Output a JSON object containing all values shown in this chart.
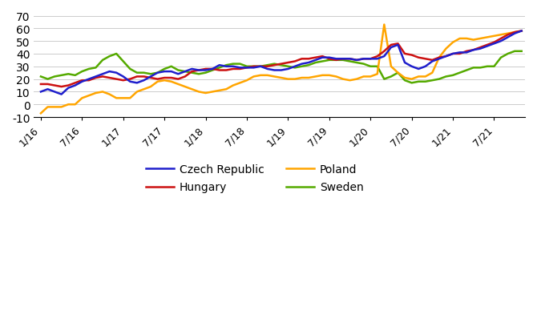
{
  "colors": {
    "czech_republic": "#1F1FCC",
    "hungary": "#CC1111",
    "poland": "#FFA500",
    "sweden": "#55AA00"
  },
  "line_width": 1.8,
  "ylim": [
    -10,
    70
  ],
  "yticks": [
    -10,
    0,
    10,
    20,
    30,
    40,
    50,
    60,
    70
  ],
  "czech_republic": [
    10,
    12,
    10,
    8,
    13,
    15,
    18,
    20,
    22,
    24,
    26,
    25,
    22,
    18,
    17,
    19,
    22,
    25,
    26,
    26,
    24,
    26,
    28,
    27,
    27,
    28,
    31,
    30,
    30,
    29,
    29,
    29,
    30,
    28,
    27,
    27,
    28,
    30,
    32,
    33,
    35,
    37,
    37,
    36,
    36,
    36,
    35,
    36,
    36,
    36,
    38,
    45,
    47,
    33,
    30,
    28,
    30,
    34,
    36,
    38,
    40,
    41,
    41,
    43,
    44,
    46,
    48,
    50,
    53,
    56,
    58
  ],
  "hungary": [
    16,
    16,
    15,
    14,
    15,
    17,
    19,
    19,
    21,
    22,
    21,
    20,
    19,
    20,
    22,
    22,
    21,
    20,
    21,
    21,
    20,
    22,
    26,
    27,
    28,
    28,
    27,
    27,
    28,
    28,
    29,
    30,
    30,
    30,
    31,
    32,
    33,
    34,
    36,
    36,
    37,
    38,
    36,
    35,
    36,
    36,
    35,
    36,
    36,
    38,
    42,
    47,
    48,
    40,
    39,
    37,
    36,
    35,
    37,
    38,
    40,
    40,
    42,
    43,
    45,
    47,
    49,
    52,
    55,
    57,
    58
  ],
  "poland": [
    -7,
    -2,
    -2,
    -2,
    0,
    0,
    5,
    7,
    9,
    10,
    8,
    5,
    5,
    5,
    10,
    12,
    14,
    18,
    19,
    18,
    16,
    14,
    12,
    10,
    9,
    10,
    11,
    12,
    15,
    17,
    19,
    22,
    23,
    23,
    22,
    21,
    20,
    20,
    21,
    21,
    22,
    23,
    23,
    22,
    20,
    19,
    20,
    22,
    22,
    24,
    63,
    30,
    25,
    21,
    20,
    22,
    22,
    25,
    37,
    44,
    49,
    52,
    52,
    51,
    52,
    53,
    54,
    55,
    56,
    57,
    58
  ],
  "sweden": [
    22,
    20,
    22,
    23,
    24,
    23,
    26,
    28,
    29,
    35,
    38,
    40,
    34,
    28,
    25,
    25,
    24,
    25,
    28,
    30,
    27,
    26,
    25,
    24,
    25,
    27,
    29,
    31,
    32,
    32,
    30,
    30,
    30,
    31,
    32,
    31,
    30,
    29,
    30,
    31,
    33,
    34,
    35,
    35,
    35,
    34,
    33,
    32,
    30,
    30,
    20,
    22,
    25,
    19,
    17,
    18,
    18,
    19,
    20,
    22,
    23,
    25,
    27,
    29,
    29,
    30,
    30,
    37,
    40,
    42,
    42
  ],
  "x_tick_labels": [
    "1/16",
    "7/16",
    "1/17",
    "7/17",
    "1/18",
    "7/18",
    "1/19",
    "7/19",
    "1/20",
    "7/20",
    "1/21",
    "7/21"
  ],
  "x_tick_positions": [
    0,
    6,
    12,
    18,
    24,
    30,
    36,
    42,
    48,
    54,
    60,
    66
  ]
}
